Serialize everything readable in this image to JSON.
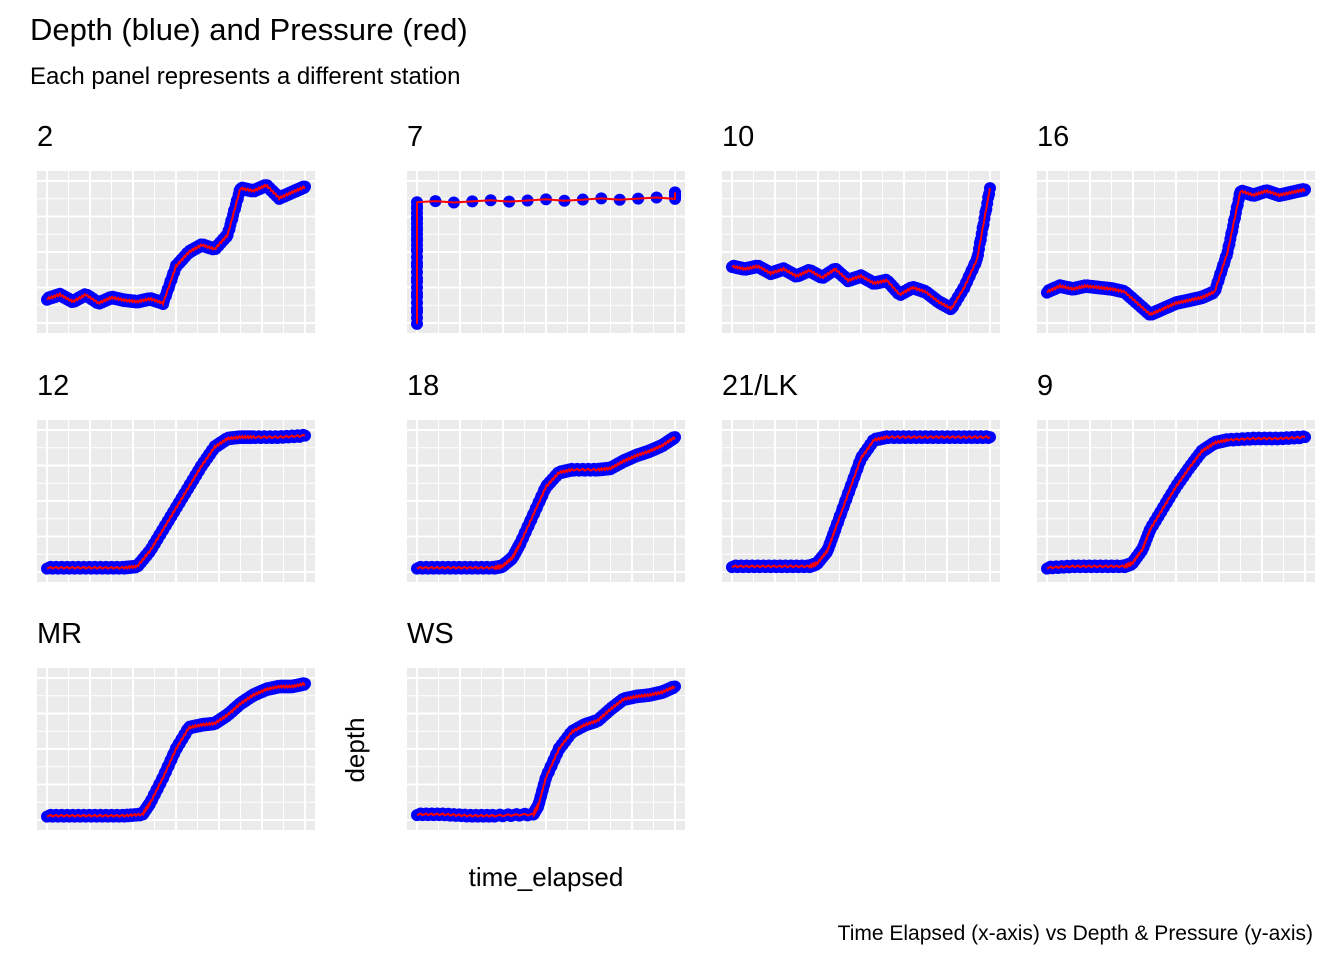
{
  "chart_data": {
    "type": "scatter",
    "title": "Depth (blue) and Pressure (red)",
    "subtitle": "Each panel represents a different station",
    "caption": "Time Elapsed (x-axis) vs Depth & Pressure (y-axis)",
    "xlabel": "time_elapsed",
    "ylabel": "depth",
    "axis_ticks_shown": false,
    "grid": true,
    "depth_color": "#0000FF",
    "pressure_color": "#FF0000",
    "panel_background": "#EBEBEB",
    "grid_color": "#FFFFFF",
    "normalized_scale": [
      0,
      1
    ],
    "panels": [
      {
        "label": "2",
        "x": [
          0,
          0.05,
          0.1,
          0.15,
          0.2,
          0.25,
          0.3,
          0.35,
          0.4,
          0.45,
          0.5,
          0.55,
          0.6,
          0.65,
          0.7,
          0.75,
          0.8,
          0.85,
          0.9,
          0.95,
          1
        ],
        "depth": [
          0.17,
          0.2,
          0.15,
          0.2,
          0.14,
          0.18,
          0.16,
          0.15,
          0.17,
          0.14,
          0.4,
          0.5,
          0.55,
          0.52,
          0.62,
          0.95,
          0.93,
          0.97,
          0.88,
          0.92,
          0.96
        ]
      },
      {
        "label": "7",
        "x": [
          0,
          0,
          0,
          1,
          1
        ],
        "depth": [
          0,
          0.5,
          0.85,
          0.88,
          0.92
        ]
      },
      {
        "label": "10",
        "x": [
          0,
          0.05,
          0.1,
          0.15,
          0.2,
          0.25,
          0.3,
          0.35,
          0.4,
          0.45,
          0.5,
          0.55,
          0.6,
          0.65,
          0.7,
          0.75,
          0.8,
          0.85,
          0.9,
          0.95,
          1
        ],
        "depth": [
          0.4,
          0.38,
          0.4,
          0.35,
          0.38,
          0.33,
          0.37,
          0.32,
          0.38,
          0.3,
          0.33,
          0.28,
          0.3,
          0.2,
          0.25,
          0.22,
          0.15,
          0.1,
          0.25,
          0.45,
          0.95
        ]
      },
      {
        "label": "16",
        "x": [
          0,
          0.05,
          0.1,
          0.15,
          0.2,
          0.25,
          0.3,
          0.35,
          0.4,
          0.45,
          0.5,
          0.55,
          0.6,
          0.65,
          0.7,
          0.75,
          0.8,
          0.85,
          0.9,
          0.95,
          1
        ],
        "depth": [
          0.22,
          0.26,
          0.24,
          0.26,
          0.25,
          0.24,
          0.22,
          0.14,
          0.06,
          0.1,
          0.14,
          0.16,
          0.18,
          0.22,
          0.5,
          0.93,
          0.9,
          0.93,
          0.9,
          0.92,
          0.94
        ]
      },
      {
        "label": "12",
        "x": [
          0,
          0.1,
          0.2,
          0.3,
          0.35,
          0.4,
          0.45,
          0.5,
          0.55,
          0.6,
          0.65,
          0.7,
          0.75,
          0.8,
          0.9,
          1
        ],
        "depth": [
          0.03,
          0.03,
          0.03,
          0.03,
          0.04,
          0.15,
          0.3,
          0.45,
          0.6,
          0.75,
          0.88,
          0.94,
          0.95,
          0.95,
          0.95,
          0.96
        ]
      },
      {
        "label": "18",
        "x": [
          0,
          0.1,
          0.2,
          0.3,
          0.33,
          0.37,
          0.4,
          0.45,
          0.5,
          0.55,
          0.6,
          0.7,
          0.75,
          0.8,
          0.85,
          0.9,
          0.95,
          1
        ],
        "depth": [
          0.03,
          0.03,
          0.03,
          0.03,
          0.04,
          0.1,
          0.2,
          0.4,
          0.6,
          0.7,
          0.72,
          0.72,
          0.73,
          0.78,
          0.82,
          0.85,
          0.89,
          0.95
        ]
      },
      {
        "label": "21/LK",
        "x": [
          0,
          0.1,
          0.2,
          0.3,
          0.33,
          0.37,
          0.4,
          0.45,
          0.5,
          0.55,
          0.6,
          0.7,
          0.8,
          0.9,
          1
        ],
        "depth": [
          0.04,
          0.04,
          0.04,
          0.04,
          0.06,
          0.15,
          0.3,
          0.55,
          0.8,
          0.93,
          0.95,
          0.95,
          0.95,
          0.95,
          0.95
        ]
      },
      {
        "label": "9",
        "x": [
          0,
          0.1,
          0.2,
          0.3,
          0.33,
          0.37,
          0.4,
          0.45,
          0.5,
          0.55,
          0.6,
          0.65,
          0.7,
          0.8,
          0.9,
          1
        ],
        "depth": [
          0.03,
          0.04,
          0.04,
          0.04,
          0.06,
          0.16,
          0.3,
          0.45,
          0.6,
          0.73,
          0.85,
          0.91,
          0.93,
          0.94,
          0.94,
          0.95
        ]
      },
      {
        "label": "MR",
        "x": [
          0,
          0.1,
          0.2,
          0.3,
          0.37,
          0.4,
          0.45,
          0.5,
          0.55,
          0.6,
          0.65,
          0.7,
          0.75,
          0.8,
          0.85,
          0.9,
          0.95,
          1
        ],
        "depth": [
          0.03,
          0.03,
          0.03,
          0.03,
          0.04,
          0.12,
          0.3,
          0.5,
          0.65,
          0.67,
          0.68,
          0.74,
          0.82,
          0.88,
          0.92,
          0.94,
          0.94,
          0.96
        ]
      },
      {
        "label": "WS",
        "x": [
          0,
          0.1,
          0.2,
          0.3,
          0.45,
          0.47,
          0.5,
          0.55,
          0.6,
          0.65,
          0.7,
          0.75,
          0.8,
          0.85,
          0.9,
          0.95,
          1
        ],
        "depth": [
          0.04,
          0.04,
          0.03,
          0.03,
          0.04,
          0.1,
          0.3,
          0.5,
          0.62,
          0.67,
          0.7,
          0.78,
          0.85,
          0.87,
          0.88,
          0.9,
          0.94
        ]
      }
    ]
  }
}
